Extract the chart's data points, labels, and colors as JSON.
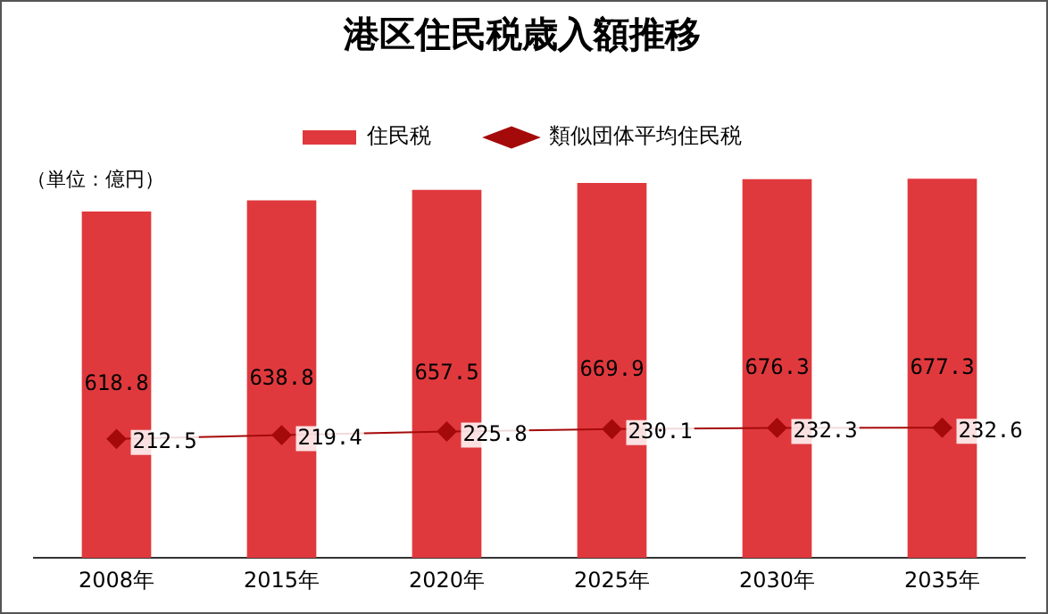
{
  "chart_data": {
    "type": "bar",
    "title": "港区住民税歳入額推移",
    "annotations": [
      "（単位：億円）"
    ],
    "categories": [
      "2008年",
      "2015年",
      "2020年",
      "2025年",
      "2030年",
      "2035年"
    ],
    "series": [
      {
        "name": "住民税",
        "color": "#e0393d",
        "values": [
          618.8,
          638.8,
          657.5,
          669.9,
          676.3,
          677.3
        ]
      },
      {
        "name": "類似団体平均住民税",
        "type": "line",
        "color": "#a50a0a",
        "marker": "diamond",
        "values": [
          212.5,
          219.4,
          225.8,
          230.1,
          232.3,
          232.6
        ]
      }
    ],
    "data_labels": true,
    "legend": "top",
    "grid": false
  }
}
